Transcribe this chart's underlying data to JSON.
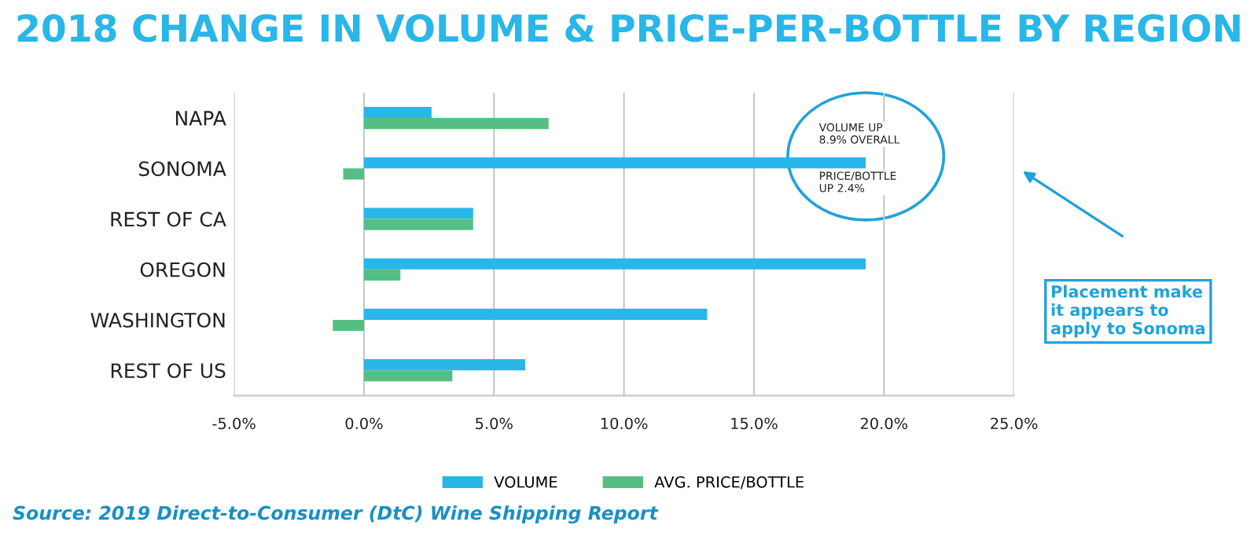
{
  "chart_data": {
    "type": "bar",
    "orientation": "horizontal",
    "title": "2018 CHANGE IN VOLUME & PRICE-PER-BOTTLE BY REGION",
    "categories": [
      "NAPA",
      "SONOMA",
      "REST OF CA",
      "OREGON",
      "WASHINGTON",
      "REST OF US"
    ],
    "series": [
      {
        "name": "VOLUME",
        "color": "#29b6e8",
        "values": [
          2.6,
          19.3,
          4.2,
          19.3,
          13.2,
          6.2
        ]
      },
      {
        "name": "AVG. PRICE/BOTTLE",
        "color": "#55bf83",
        "values": [
          7.1,
          -0.8,
          4.2,
          1.4,
          -1.2,
          3.4
        ]
      }
    ],
    "xlim": [
      -5,
      25
    ],
    "xticks": [
      {
        "value": -5,
        "label": "-5.0%"
      },
      {
        "value": 0,
        "label": "0.0%"
      },
      {
        "value": 5,
        "label": "5.0%"
      },
      {
        "value": 10,
        "label": "10.0%"
      },
      {
        "value": 15,
        "label": "15.0%"
      },
      {
        "value": 20,
        "label": "20.0%"
      },
      {
        "value": 25,
        "label": "25.0%"
      }
    ],
    "grid": "x",
    "legend": "bottom",
    "annotations": [
      "VOLUME UP\n8.9% OVERALL",
      "PRICE/BOTTLE\nUP 2.4%",
      "Placement make\nit appears to\napply to Sonoma",
      "Source: 2019 Direct-to-Consumer (DtC) Wine Shipping Report"
    ]
  }
}
